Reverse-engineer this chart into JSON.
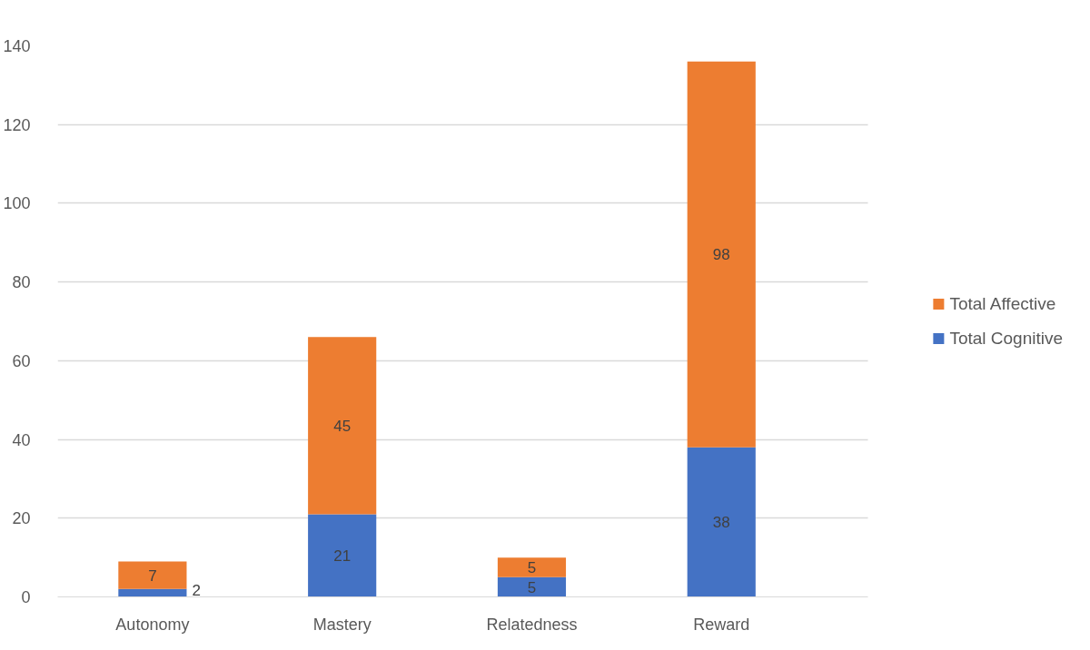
{
  "chart_data": {
    "type": "bar",
    "stacked": true,
    "categories": [
      "Autonomy",
      "Mastery",
      "Relatedness",
      "Reward"
    ],
    "series": [
      {
        "name": "Total Cognitive",
        "color": "#4472c4",
        "values": [
          2,
          21,
          5,
          38
        ]
      },
      {
        "name": "Total Affective",
        "color": "#ed7d31",
        "values": [
          7,
          45,
          5,
          98
        ]
      }
    ],
    "ylim": [
      0,
      140
    ],
    "yticks": [
      0,
      20,
      40,
      60,
      80,
      100,
      120,
      140
    ],
    "grid": "y",
    "legend": "right",
    "data_labels": true
  }
}
